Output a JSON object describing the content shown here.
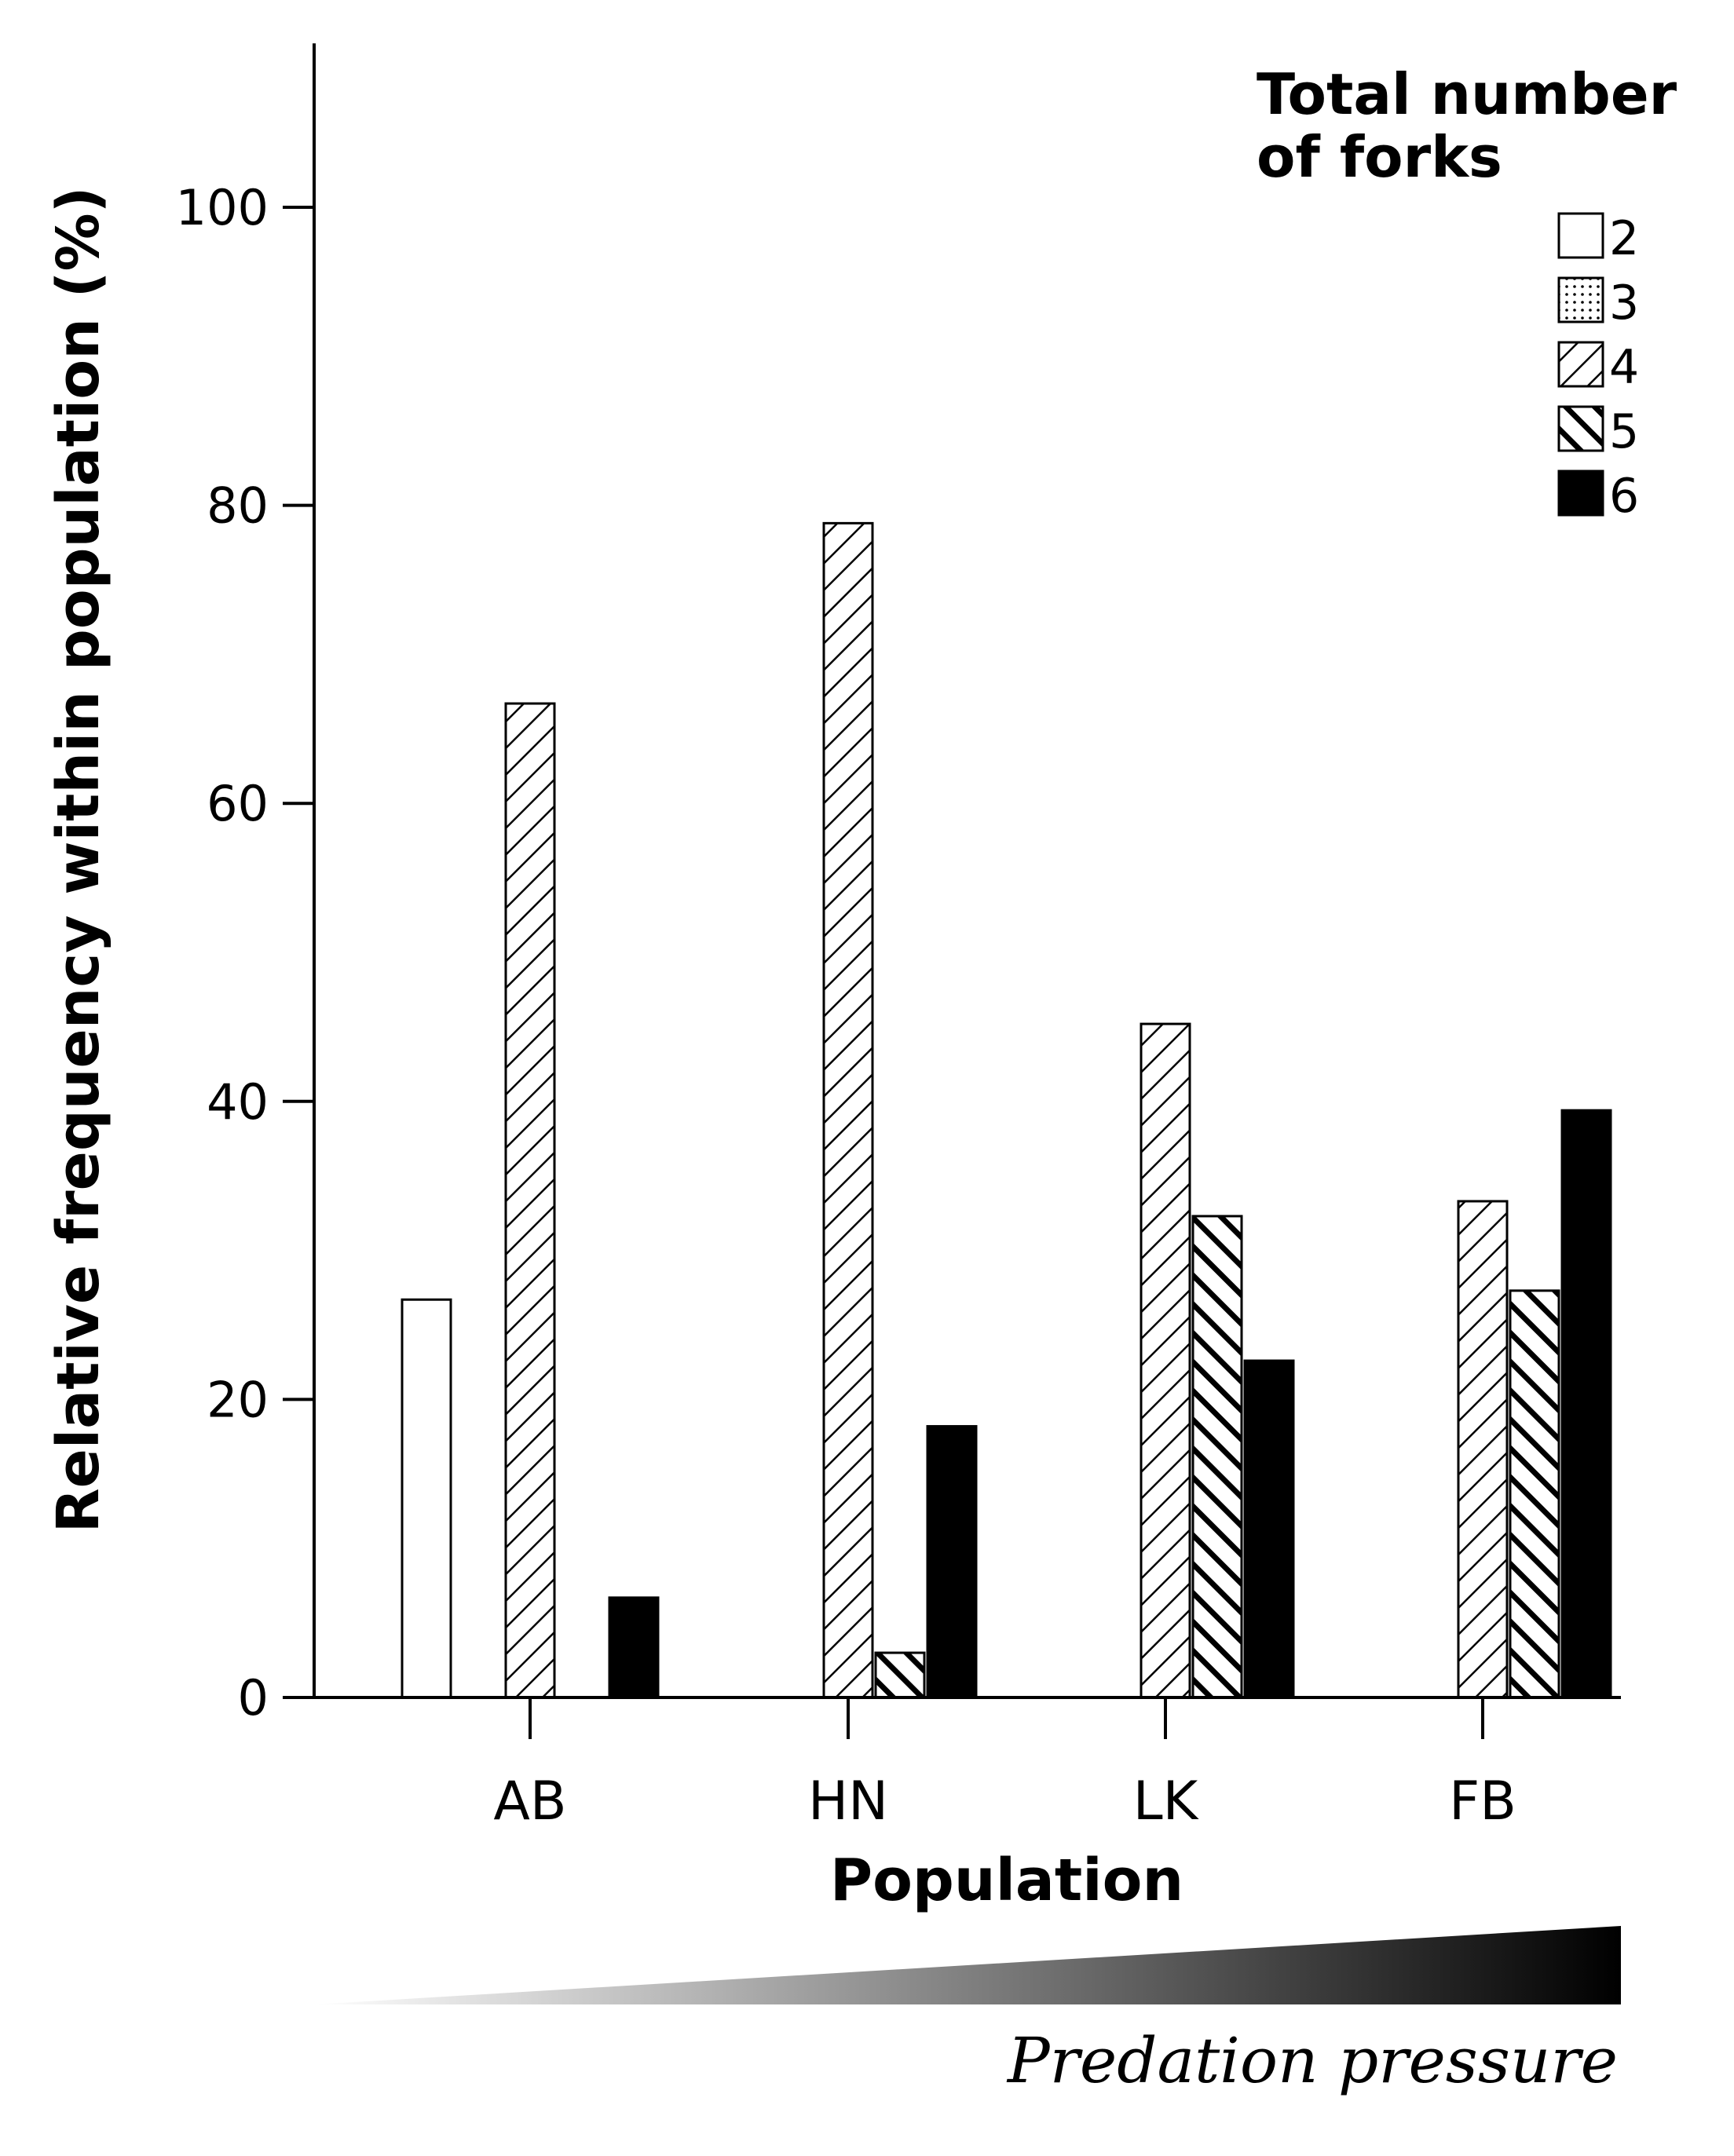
{
  "chart_data": {
    "type": "bar",
    "title": "",
    "xlabel": "Population",
    "ylabel": "Relative frequency within population (%)",
    "ylim": [
      0,
      111
    ],
    "yticks": [
      0,
      20,
      40,
      60,
      80,
      100
    ],
    "grid": false,
    "categories": [
      "AB",
      "HN",
      "LK",
      "FB"
    ],
    "legend": {
      "title_line1": "Total number",
      "title_line2": "of forks",
      "position": "top-right"
    },
    "series": [
      {
        "name": "2",
        "pattern": "white",
        "values": [
          26.7,
          0,
          0,
          0
        ]
      },
      {
        "name": "3",
        "pattern": "dotted",
        "values": [
          0,
          0,
          0,
          0
        ]
      },
      {
        "name": "4",
        "pattern": "light-hatch",
        "values": [
          66.7,
          78.8,
          45.2,
          33.3
        ]
      },
      {
        "name": "5",
        "pattern": "heavy-hatch",
        "values": [
          0,
          3.0,
          32.3,
          27.3
        ]
      },
      {
        "name": "6",
        "pattern": "black",
        "values": [
          6.7,
          18.2,
          22.6,
          39.4
        ]
      }
    ],
    "annotation": {
      "text": "Predation pressure",
      "gradient_from": "#ffffff",
      "gradient_to": "#000000"
    }
  }
}
